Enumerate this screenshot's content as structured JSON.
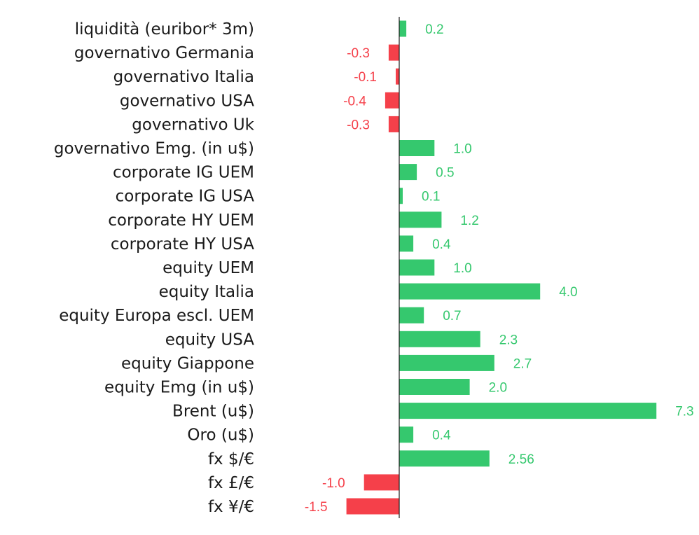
{
  "chart_data": {
    "type": "bar",
    "orientation": "horizontal",
    "categories": [
      "liquidità (euribor* 3m)",
      "governativo Germania",
      "governativo Italia",
      "governativo USA",
      "governativo Uk",
      "governativo Emg. (in u$)",
      "corporate IG UEM",
      "corporate IG USA",
      "corporate HY UEM",
      "corporate HY USA",
      "equity UEM",
      "equity Italia",
      "equity Europa escl. UEM",
      "equity USA",
      "equity Giappone",
      "equity Emg (in u$)",
      "Brent (u$)",
      "Oro (u$)",
      "fx $/€",
      "fx £/€",
      "fx ¥/€"
    ],
    "values": [
      0.2,
      -0.3,
      -0.1,
      -0.4,
      -0.3,
      1.0,
      0.5,
      0.1,
      1.2,
      0.4,
      1.0,
      4.0,
      0.7,
      2.3,
      2.7,
      2.0,
      7.3,
      0.4,
      2.56,
      -1.0,
      -1.5
    ],
    "value_labels": [
      "0.2",
      "-0.3",
      "-0.1",
      "-0.4",
      "-0.3",
      "1.0",
      "0.5",
      "0.1",
      "1.2",
      "0.4",
      "1.0",
      "4.0",
      "0.7",
      "2.3",
      "2.7",
      "2.0",
      "7.3",
      "0.4",
      "2.56",
      "-1.0",
      "-1.5"
    ],
    "title": "",
    "xlabel": "",
    "ylabel": "",
    "grid": false,
    "colors": {
      "positive": "#35c86e",
      "negative": "#f5404a",
      "axis": "#1a1a1a"
    }
  }
}
